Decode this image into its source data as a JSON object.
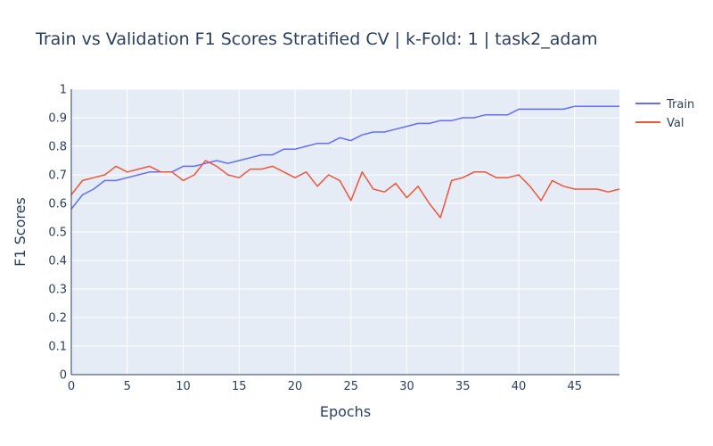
{
  "chart_data": {
    "type": "line",
    "title": "Train vs Validation F1 Scores Stratified CV | k-Fold: 1 | task2_adam",
    "xlabel": "Epochs",
    "ylabel": "F1 Scores",
    "xlim": [
      0,
      49
    ],
    "ylim": [
      0,
      1
    ],
    "x_ticks": [
      "0",
      "5",
      "10",
      "15",
      "20",
      "25",
      "30",
      "35",
      "40",
      "45"
    ],
    "y_ticks": [
      "0",
      "0.1",
      "0.2",
      "0.3",
      "0.4",
      "0.5",
      "0.6",
      "0.7",
      "0.8",
      "0.9",
      "1"
    ],
    "grid": true,
    "legend_position": "top-right",
    "x": [
      0,
      1,
      2,
      3,
      4,
      5,
      6,
      7,
      8,
      9,
      10,
      11,
      12,
      13,
      14,
      15,
      16,
      17,
      18,
      19,
      20,
      21,
      22,
      23,
      24,
      25,
      26,
      27,
      28,
      29,
      30,
      31,
      32,
      33,
      34,
      35,
      36,
      37,
      38,
      39,
      40,
      41,
      42,
      43,
      44,
      45,
      46,
      47,
      48,
      49
    ],
    "series": [
      {
        "name": "Train",
        "color": "#636efa",
        "values": [
          0.58,
          0.63,
          0.65,
          0.68,
          0.68,
          0.69,
          0.7,
          0.71,
          0.71,
          0.71,
          0.73,
          0.73,
          0.74,
          0.75,
          0.74,
          0.75,
          0.76,
          0.77,
          0.77,
          0.79,
          0.79,
          0.8,
          0.81,
          0.81,
          0.83,
          0.82,
          0.84,
          0.85,
          0.85,
          0.86,
          0.87,
          0.88,
          0.88,
          0.89,
          0.89,
          0.9,
          0.9,
          0.91,
          0.91,
          0.91,
          0.93,
          0.93,
          0.93,
          0.93,
          0.93,
          0.94,
          0.94,
          0.94,
          0.94,
          0.94
        ]
      },
      {
        "name": "Val",
        "color": "#ef553b",
        "values": [
          0.63,
          0.68,
          0.69,
          0.7,
          0.73,
          0.71,
          0.72,
          0.73,
          0.71,
          0.71,
          0.68,
          0.7,
          0.75,
          0.73,
          0.7,
          0.69,
          0.72,
          0.72,
          0.73,
          0.71,
          0.69,
          0.71,
          0.66,
          0.7,
          0.68,
          0.61,
          0.71,
          0.65,
          0.64,
          0.67,
          0.62,
          0.66,
          0.6,
          0.55,
          0.68,
          0.69,
          0.71,
          0.71,
          0.69,
          0.69,
          0.7,
          0.66,
          0.61,
          0.68,
          0.66,
          0.65,
          0.65,
          0.65,
          0.64,
          0.65
        ]
      }
    ]
  }
}
